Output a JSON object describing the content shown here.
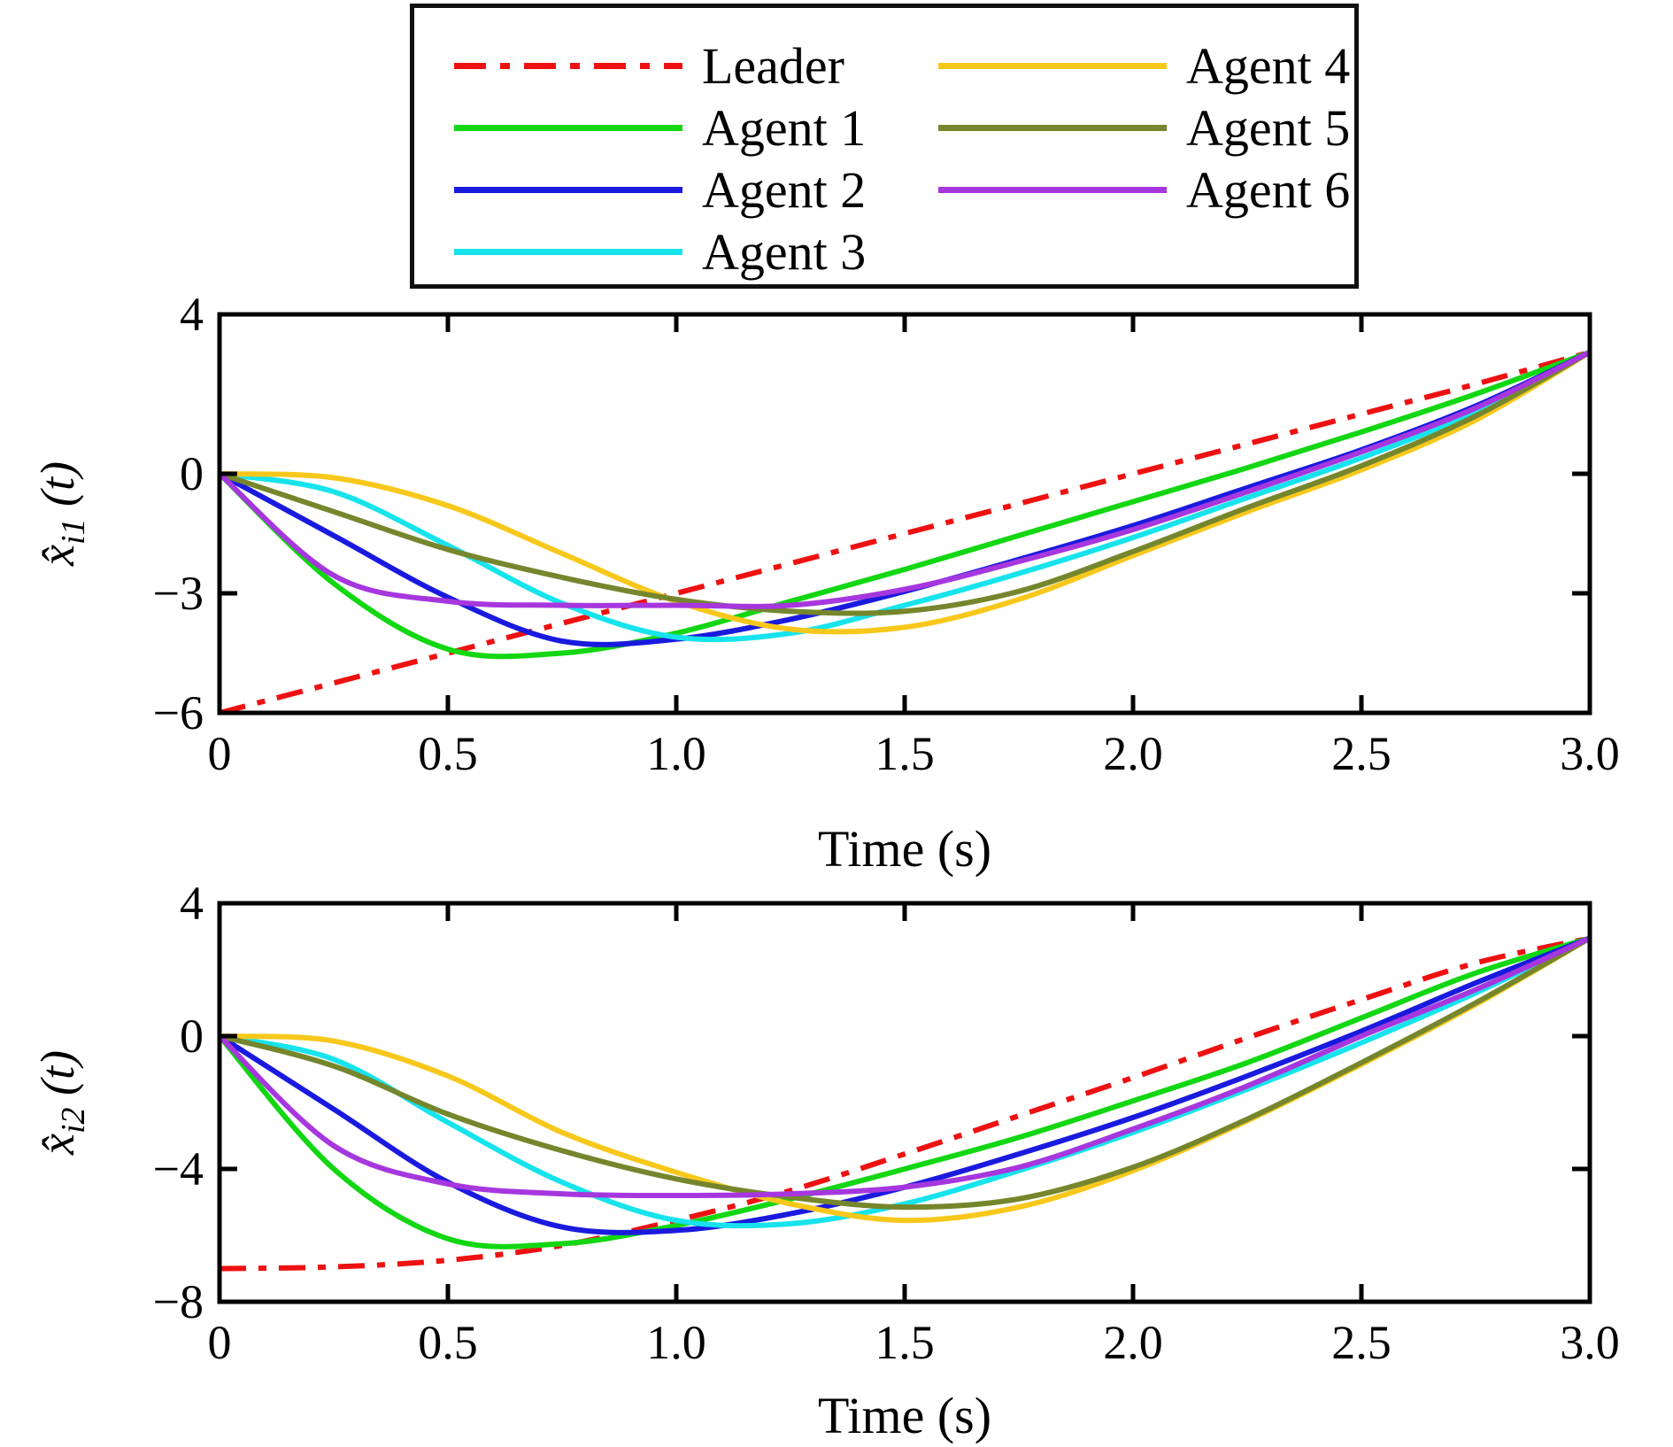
{
  "figure": {
    "background": "#ffffff",
    "frame_color": "#000000",
    "legend": {
      "entries": [
        {
          "label": "Leader",
          "color": "#EE1111",
          "style": "dashdot",
          "column": 1
        },
        {
          "label": "Agent 1",
          "color": "#12D712",
          "style": "solid",
          "column": 1
        },
        {
          "label": "Agent 2",
          "color": "#1A1ADF",
          "style": "solid",
          "column": 1
        },
        {
          "label": "Agent 3",
          "color": "#17E3EC",
          "style": "solid",
          "column": 1
        },
        {
          "label": "Agent 4",
          "color": "#F7C81B",
          "style": "solid",
          "column": 2
        },
        {
          "label": "Agent 5",
          "color": "#75862C",
          "style": "solid",
          "column": 2
        },
        {
          "label": "Agent 6",
          "color": "#A637DE",
          "style": "solid",
          "column": 2
        }
      ]
    }
  },
  "chart_data": [
    {
      "type": "line",
      "title": "",
      "xlabel": "Time (s)",
      "ylabel": {
        "main": "x̂",
        "sub": "i1",
        "suffix": " (t)"
      },
      "xlim": [
        0,
        3
      ],
      "ylim": [
        -6,
        4
      ],
      "grid": false,
      "legend_position": "top-outside",
      "xticks": {
        "values": [
          0,
          0.5,
          1,
          1.5,
          2,
          2.5,
          3
        ],
        "labels": [
          "0",
          "0.5",
          "1.0",
          "1.5",
          "2.0",
          "2.5",
          "3.0"
        ]
      },
      "yticks": {
        "values": [
          4,
          0,
          -3,
          -6
        ],
        "labels": [
          "4",
          "0",
          "−3",
          "−6"
        ]
      },
      "x": [
        0,
        0.25,
        0.5,
        0.75,
        1.0,
        1.25,
        1.5,
        1.75,
        2.0,
        2.25,
        2.5,
        2.75,
        3.0
      ],
      "series": [
        {
          "name": "Leader",
          "color": "#EE1111",
          "dash": true,
          "values": [
            -6.0,
            -5.25,
            -4.5,
            -3.75,
            -3.0,
            -2.25,
            -1.5,
            -0.75,
            0.0,
            0.75,
            1.5,
            2.25,
            3.05
          ]
        },
        {
          "name": "Agent 1",
          "color": "#12D712",
          "dash": false,
          "values": [
            0.0,
            -2.75,
            -4.4,
            -4.5,
            -4.0,
            -3.2,
            -2.4,
            -1.55,
            -0.7,
            0.15,
            1.05,
            2.0,
            3.05
          ]
        },
        {
          "name": "Agent 2",
          "color": "#1A1ADF",
          "dash": false,
          "values": [
            0.0,
            -1.55,
            -3.1,
            -4.2,
            -4.15,
            -3.65,
            -2.95,
            -2.15,
            -1.3,
            -0.35,
            0.6,
            1.7,
            3.05
          ]
        },
        {
          "name": "Agent 3",
          "color": "#17E3EC",
          "dash": false,
          "values": [
            0.0,
            -0.45,
            -1.8,
            -3.25,
            -4.1,
            -4.0,
            -3.3,
            -2.5,
            -1.6,
            -0.6,
            0.4,
            1.55,
            3.05
          ]
        },
        {
          "name": "Agent 4",
          "color": "#F7C81B",
          "dash": false,
          "values": [
            0.0,
            -0.1,
            -0.8,
            -2.0,
            -3.2,
            -3.9,
            -3.85,
            -3.15,
            -2.05,
            -0.95,
            0.1,
            1.35,
            3.05
          ]
        },
        {
          "name": "Agent 5",
          "color": "#75862C",
          "dash": false,
          "values": [
            0.0,
            -0.95,
            -1.9,
            -2.6,
            -3.15,
            -3.45,
            -3.45,
            -2.95,
            -1.95,
            -0.85,
            0.2,
            1.45,
            3.05
          ]
        },
        {
          "name": "Agent 6",
          "color": "#A637DE",
          "dash": false,
          "values": [
            0.0,
            -2.55,
            -3.2,
            -3.3,
            -3.3,
            -3.3,
            -2.9,
            -2.2,
            -1.4,
            -0.45,
            0.55,
            1.65,
            3.05
          ]
        }
      ]
    },
    {
      "type": "line",
      "title": "",
      "xlabel": "Time (s)",
      "ylabel": {
        "main": "x̂",
        "sub": "i2",
        "suffix": " (t)"
      },
      "xlim": [
        0,
        3
      ],
      "ylim": [
        -8,
        4
      ],
      "grid": false,
      "legend_position": "shared-top",
      "xticks": {
        "values": [
          0,
          0.5,
          1,
          1.5,
          2,
          2.5,
          3
        ],
        "labels": [
          "0",
          "0.5",
          "1.0",
          "1.5",
          "2.0",
          "2.5",
          "3.0"
        ]
      },
      "yticks": {
        "values": [
          4,
          0,
          -4,
          -8
        ],
        "labels": [
          "4",
          "0",
          "−4",
          "−8"
        ]
      },
      "x": [
        0,
        0.25,
        0.5,
        0.75,
        1.0,
        1.25,
        1.5,
        1.75,
        2.0,
        2.25,
        2.5,
        2.75,
        3.0
      ],
      "series": [
        {
          "name": "Leader",
          "color": "#EE1111",
          "dash": true,
          "values": [
            -7.0,
            -6.95,
            -6.75,
            -6.3,
            -5.55,
            -4.65,
            -3.55,
            -2.4,
            -1.25,
            -0.05,
            1.1,
            2.2,
            2.95
          ]
        },
        {
          "name": "Agent 1",
          "color": "#12D712",
          "dash": false,
          "values": [
            0.0,
            -4.0,
            -6.1,
            -6.25,
            -5.7,
            -4.9,
            -4.0,
            -3.05,
            -1.95,
            -0.8,
            0.55,
            1.9,
            2.95
          ]
        },
        {
          "name": "Agent 2",
          "color": "#1A1ADF",
          "dash": false,
          "values": [
            0.0,
            -2.2,
            -4.4,
            -5.75,
            -5.85,
            -5.35,
            -4.55,
            -3.55,
            -2.45,
            -1.2,
            0.15,
            1.6,
            2.95
          ]
        },
        {
          "name": "Agent 3",
          "color": "#17E3EC",
          "dash": false,
          "values": [
            0.0,
            -0.7,
            -2.6,
            -4.4,
            -5.55,
            -5.65,
            -5.05,
            -4.05,
            -2.9,
            -1.6,
            -0.2,
            1.3,
            2.95
          ]
        },
        {
          "name": "Agent 4",
          "color": "#F7C81B",
          "dash": false,
          "values": [
            0.0,
            -0.15,
            -1.2,
            -2.9,
            -4.1,
            -5.05,
            -5.55,
            -5.15,
            -4.05,
            -2.55,
            -0.85,
            0.95,
            2.95
          ]
        },
        {
          "name": "Agent 5",
          "color": "#75862C",
          "dash": false,
          "values": [
            0.0,
            -0.9,
            -2.35,
            -3.45,
            -4.3,
            -4.85,
            -5.15,
            -4.9,
            -3.95,
            -2.5,
            -0.8,
            1.0,
            2.95
          ]
        },
        {
          "name": "Agent 6",
          "color": "#A637DE",
          "dash": false,
          "values": [
            0.0,
            -3.3,
            -4.45,
            -4.75,
            -4.8,
            -4.75,
            -4.55,
            -3.95,
            -2.8,
            -1.5,
            0.0,
            1.4,
            2.95
          ]
        }
      ]
    }
  ]
}
